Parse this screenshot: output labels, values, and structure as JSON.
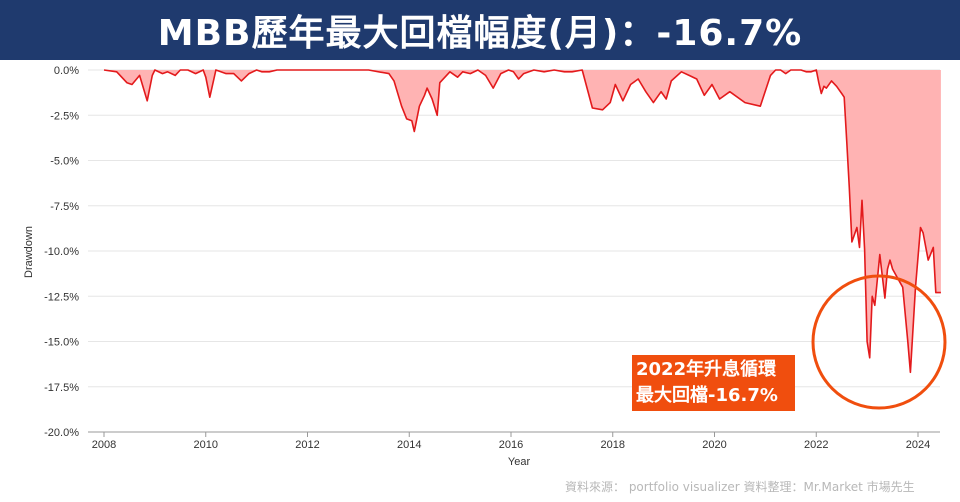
{
  "title": "MBB歷年最大回檔幅度(月)：-16.7%",
  "callout": {
    "line1": "2022年升息循環",
    "line2": "最大回檔-16.7%"
  },
  "source_note": "資料來源： portfolio visualizer   資料整理：Mr.Market 市場先生",
  "colors": {
    "title_bg": "#1f3a6e",
    "line": "#e31a1c",
    "fill": "#ffb3b3",
    "callout_bg": "#f04e0e",
    "circle": "#f04e0e"
  },
  "chart_data": {
    "type": "area",
    "xlabel": "Year",
    "ylabel": "Drawdown",
    "xlim": [
      2008,
      2024.6
    ],
    "ylim": [
      -20,
      0
    ],
    "x_ticks": [
      "2008",
      "2010",
      "2012",
      "2014",
      "2016",
      "2018",
      "2020",
      "2022",
      "2024"
    ],
    "y_ticks": [
      "0.0%",
      "-2.5%",
      "-5.0%",
      "-7.5%",
      "-10.0%",
      "-12.5%",
      "-15.0%",
      "-17.5%",
      "-20.0%"
    ],
    "grid": true,
    "series": [
      {
        "x": [
          2008.0,
          2008.25,
          2008.45,
          2008.55,
          2008.7,
          2008.85,
          2008.95,
          2009.0,
          2009.15,
          2009.25,
          2009.4,
          2009.5,
          2009.65,
          2009.8,
          2009.95,
          2010.0,
          2010.08,
          2010.2,
          2010.4,
          2010.55,
          2010.7,
          2010.85,
          2011.0,
          2011.1,
          2011.25,
          2011.4,
          2011.6,
          2011.8,
          2012.0,
          2012.4,
          2012.8,
          2013.2,
          2013.6,
          2013.7,
          2013.85,
          2013.95,
          2014.05,
          2014.1,
          2014.2,
          2014.3,
          2014.35,
          2014.45,
          2014.55,
          2014.6,
          2014.8,
          2014.95,
          2015.05,
          2015.2,
          2015.35,
          2015.5,
          2015.65,
          2015.8,
          2015.95,
          2016.05,
          2016.15,
          2016.25,
          2016.45,
          2016.65,
          2016.85,
          2017.05,
          2017.2,
          2017.4,
          2017.6,
          2017.8,
          2017.95,
          2018.05,
          2018.2,
          2018.35,
          2018.5,
          2018.65,
          2018.8,
          2018.95,
          2019.05,
          2019.15,
          2019.35,
          2019.5,
          2019.65,
          2019.8,
          2019.95,
          2020.1,
          2020.3,
          2020.6,
          2020.9,
          2021.1,
          2021.2,
          2021.3,
          2021.4,
          2021.5,
          2021.6,
          2021.7,
          2021.8,
          2021.9,
          2022.0,
          2022.05,
          2022.1,
          2022.15,
          2022.2,
          2022.3,
          2022.4,
          2022.5,
          2022.55,
          2022.6,
          2022.65,
          2022.7,
          2022.8,
          2022.85,
          2022.9,
          2022.95,
          2023.0,
          2023.05,
          2023.1,
          2023.15,
          2023.25,
          2023.35,
          2023.4,
          2023.45,
          2023.5,
          2023.6,
          2023.7,
          2023.8,
          2023.85,
          2023.95,
          2024.05,
          2024.1,
          2024.2,
          2024.3,
          2024.35,
          2024.45
        ],
        "y": [
          0.0,
          -0.1,
          -0.7,
          -0.8,
          -0.3,
          -1.7,
          -0.3,
          0.0,
          -0.2,
          -0.1,
          -0.3,
          0.0,
          0.0,
          -0.2,
          0.0,
          -0.4,
          -1.5,
          0.0,
          -0.2,
          -0.2,
          -0.6,
          -0.2,
          0.0,
          -0.1,
          -0.1,
          0.0,
          0.0,
          0.0,
          0.0,
          0.0,
          0.0,
          0.0,
          -0.2,
          -0.6,
          -2.0,
          -2.7,
          -2.8,
          -3.4,
          -2.0,
          -1.4,
          -1.0,
          -1.6,
          -2.5,
          -0.7,
          -0.1,
          -0.4,
          -0.1,
          -0.2,
          0.0,
          -0.3,
          -1.0,
          -0.2,
          0.0,
          -0.1,
          -0.5,
          -0.2,
          0.0,
          -0.1,
          0.0,
          -0.1,
          -0.1,
          0.0,
          -2.1,
          -2.2,
          -1.8,
          -0.8,
          -1.7,
          -0.8,
          -0.5,
          -1.2,
          -1.8,
          -1.2,
          -1.6,
          -0.6,
          -0.1,
          -0.3,
          -0.5,
          -1.4,
          -0.8,
          -1.6,
          -1.2,
          -1.8,
          -2.0,
          -0.3,
          0.0,
          0.0,
          -0.2,
          0.0,
          0.0,
          0.0,
          -0.1,
          -0.1,
          0.0,
          -0.7,
          -1.3,
          -0.9,
          -1.0,
          -0.6,
          -0.9,
          -1.3,
          -1.5,
          -4.0,
          -6.5,
          -9.5,
          -8.7,
          -9.8,
          -7.2,
          -9.9,
          -15.0,
          -15.9,
          -12.5,
          -13.0,
          -10.2,
          -12.6,
          -11.0,
          -10.5,
          -11.0,
          -11.5,
          -12.0,
          -15.0,
          -16.7,
          -12.0,
          -8.7,
          -9.0,
          -10.5,
          -9.8,
          -12.3,
          -12.3
        ]
      }
    ]
  }
}
